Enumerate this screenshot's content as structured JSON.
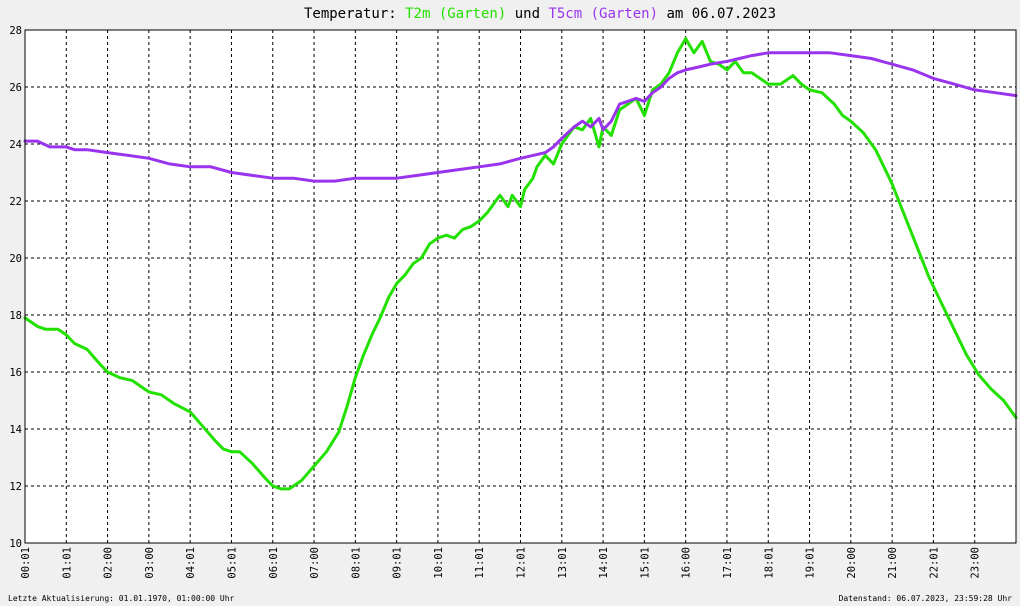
{
  "colors": {
    "t2m": "#22e000",
    "t5cm": "#9a33ee",
    "frame": "#000000",
    "plot_bg": "#ffffff"
  },
  "chart_data": {
    "type": "line",
    "title": {
      "prefix": "Temperatur: ",
      "series1": "T2m (Garten)",
      "mid": " und ",
      "series2": "T5cm (Garten)",
      "suffix": " am 06.07.2023"
    },
    "x_ticks": [
      "00:01",
      "01:01",
      "02:00",
      "03:00",
      "04:01",
      "05:01",
      "06:01",
      "07:00",
      "08:01",
      "09:01",
      "10:01",
      "11:01",
      "12:01",
      "13:01",
      "14:01",
      "15:01",
      "16:00",
      "17:01",
      "18:01",
      "19:01",
      "20:00",
      "21:00",
      "22:01",
      "23:00"
    ],
    "y_ticks": [
      10,
      12,
      14,
      16,
      18,
      20,
      22,
      24,
      26,
      28
    ],
    "ylim": [
      10,
      28
    ],
    "xlim_hours": [
      0,
      24
    ],
    "grid": true,
    "series": [
      {
        "name": "T2m (Garten)",
        "points": [
          [
            0.0,
            17.9
          ],
          [
            0.3,
            17.6
          ],
          [
            0.5,
            17.5
          ],
          [
            0.8,
            17.5
          ],
          [
            1.0,
            17.3
          ],
          [
            1.2,
            17.0
          ],
          [
            1.5,
            16.8
          ],
          [
            1.8,
            16.3
          ],
          [
            2.0,
            16.0
          ],
          [
            2.3,
            15.8
          ],
          [
            2.6,
            15.7
          ],
          [
            2.9,
            15.4
          ],
          [
            3.0,
            15.3
          ],
          [
            3.3,
            15.2
          ],
          [
            3.6,
            14.9
          ],
          [
            4.0,
            14.6
          ],
          [
            4.3,
            14.1
          ],
          [
            4.6,
            13.6
          ],
          [
            4.8,
            13.3
          ],
          [
            5.0,
            13.2
          ],
          [
            5.2,
            13.2
          ],
          [
            5.5,
            12.8
          ],
          [
            5.8,
            12.3
          ],
          [
            6.0,
            12.0
          ],
          [
            6.2,
            11.9
          ],
          [
            6.4,
            11.9
          ],
          [
            6.7,
            12.2
          ],
          [
            7.0,
            12.7
          ],
          [
            7.3,
            13.2
          ],
          [
            7.6,
            13.9
          ],
          [
            7.8,
            14.8
          ],
          [
            8.0,
            15.8
          ],
          [
            8.2,
            16.6
          ],
          [
            8.4,
            17.3
          ],
          [
            8.6,
            17.9
          ],
          [
            8.8,
            18.6
          ],
          [
            9.0,
            19.1
          ],
          [
            9.2,
            19.4
          ],
          [
            9.4,
            19.8
          ],
          [
            9.6,
            20.0
          ],
          [
            9.8,
            20.5
          ],
          [
            10.0,
            20.7
          ],
          [
            10.2,
            20.8
          ],
          [
            10.4,
            20.7
          ],
          [
            10.6,
            21.0
          ],
          [
            10.8,
            21.1
          ],
          [
            11.0,
            21.3
          ],
          [
            11.2,
            21.6
          ],
          [
            11.4,
            22.0
          ],
          [
            11.5,
            22.2
          ],
          [
            11.7,
            21.8
          ],
          [
            11.8,
            22.2
          ],
          [
            12.0,
            21.8
          ],
          [
            12.1,
            22.4
          ],
          [
            12.3,
            22.8
          ],
          [
            12.4,
            23.2
          ],
          [
            12.6,
            23.6
          ],
          [
            12.8,
            23.3
          ],
          [
            13.0,
            24.0
          ],
          [
            13.3,
            24.6
          ],
          [
            13.5,
            24.5
          ],
          [
            13.7,
            24.9
          ],
          [
            13.9,
            23.9
          ],
          [
            14.0,
            24.6
          ],
          [
            14.2,
            24.3
          ],
          [
            14.4,
            25.2
          ],
          [
            14.6,
            25.4
          ],
          [
            14.8,
            25.6
          ],
          [
            15.0,
            25.0
          ],
          [
            15.2,
            25.9
          ],
          [
            15.4,
            26.1
          ],
          [
            15.6,
            26.5
          ],
          [
            15.8,
            27.2
          ],
          [
            16.0,
            27.7
          ],
          [
            16.2,
            27.2
          ],
          [
            16.4,
            27.6
          ],
          [
            16.6,
            26.9
          ],
          [
            16.8,
            26.8
          ],
          [
            17.0,
            26.6
          ],
          [
            17.2,
            26.9
          ],
          [
            17.4,
            26.5
          ],
          [
            17.6,
            26.5
          ],
          [
            17.8,
            26.3
          ],
          [
            18.0,
            26.1
          ],
          [
            18.3,
            26.1
          ],
          [
            18.6,
            26.4
          ],
          [
            18.8,
            26.1
          ],
          [
            19.0,
            25.9
          ],
          [
            19.3,
            25.8
          ],
          [
            19.6,
            25.4
          ],
          [
            19.8,
            25.0
          ],
          [
            20.0,
            24.8
          ],
          [
            20.3,
            24.4
          ],
          [
            20.6,
            23.8
          ],
          [
            20.8,
            23.2
          ],
          [
            21.0,
            22.6
          ],
          [
            21.3,
            21.5
          ],
          [
            21.6,
            20.4
          ],
          [
            21.9,
            19.3
          ],
          [
            22.2,
            18.4
          ],
          [
            22.5,
            17.5
          ],
          [
            22.8,
            16.6
          ],
          [
            23.1,
            15.9
          ],
          [
            23.4,
            15.4
          ],
          [
            23.7,
            15.0
          ],
          [
            24.0,
            14.4
          ]
        ]
      },
      {
        "name": "T5cm (Garten)",
        "points": [
          [
            0.0,
            24.1
          ],
          [
            0.3,
            24.1
          ],
          [
            0.6,
            23.9
          ],
          [
            1.0,
            23.9
          ],
          [
            1.2,
            23.8
          ],
          [
            1.5,
            23.8
          ],
          [
            2.0,
            23.7
          ],
          [
            2.5,
            23.6
          ],
          [
            3.0,
            23.5
          ],
          [
            3.5,
            23.3
          ],
          [
            4.0,
            23.2
          ],
          [
            4.5,
            23.2
          ],
          [
            5.0,
            23.0
          ],
          [
            5.5,
            22.9
          ],
          [
            6.0,
            22.8
          ],
          [
            6.5,
            22.8
          ],
          [
            7.0,
            22.7
          ],
          [
            7.5,
            22.7
          ],
          [
            8.0,
            22.8
          ],
          [
            8.5,
            22.8
          ],
          [
            9.0,
            22.8
          ],
          [
            9.5,
            22.9
          ],
          [
            10.0,
            23.0
          ],
          [
            10.5,
            23.1
          ],
          [
            11.0,
            23.2
          ],
          [
            11.5,
            23.3
          ],
          [
            12.0,
            23.5
          ],
          [
            12.3,
            23.6
          ],
          [
            12.6,
            23.7
          ],
          [
            12.8,
            23.9
          ],
          [
            13.0,
            24.2
          ],
          [
            13.3,
            24.6
          ],
          [
            13.5,
            24.8
          ],
          [
            13.7,
            24.6
          ],
          [
            13.9,
            24.9
          ],
          [
            14.0,
            24.5
          ],
          [
            14.2,
            24.8
          ],
          [
            14.4,
            25.4
          ],
          [
            14.6,
            25.5
          ],
          [
            14.8,
            25.6
          ],
          [
            15.0,
            25.5
          ],
          [
            15.2,
            25.8
          ],
          [
            15.4,
            26.0
          ],
          [
            15.6,
            26.3
          ],
          [
            15.8,
            26.5
          ],
          [
            16.0,
            26.6
          ],
          [
            16.3,
            26.7
          ],
          [
            16.6,
            26.8
          ],
          [
            17.0,
            26.9
          ],
          [
            17.3,
            27.0
          ],
          [
            17.6,
            27.1
          ],
          [
            18.0,
            27.2
          ],
          [
            18.5,
            27.2
          ],
          [
            19.0,
            27.2
          ],
          [
            19.5,
            27.2
          ],
          [
            20.0,
            27.1
          ],
          [
            20.5,
            27.0
          ],
          [
            21.0,
            26.8
          ],
          [
            21.5,
            26.6
          ],
          [
            22.0,
            26.3
          ],
          [
            22.5,
            26.1
          ],
          [
            23.0,
            25.9
          ],
          [
            23.5,
            25.8
          ],
          [
            24.0,
            25.7
          ]
        ]
      }
    ]
  },
  "footer": {
    "left": "Letzte Aktualisierung: 01.01.1970, 01:00:00 Uhr",
    "right": "Datenstand: 06.07.2023, 23:59:28 Uhr"
  }
}
